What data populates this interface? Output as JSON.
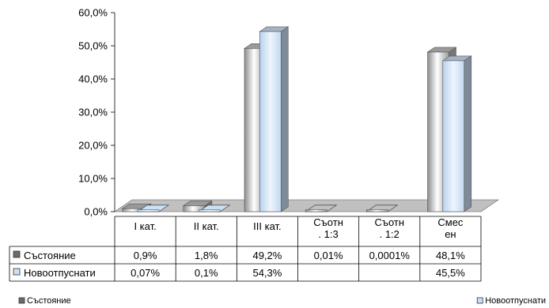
{
  "chart_data": {
    "type": "bar",
    "subtype": "3d-clustered-column-with-data-table",
    "categories": [
      [
        "I кат."
      ],
      [
        "II кат."
      ],
      [
        "III кат."
      ],
      [
        "Съотн",
        ". 1:3"
      ],
      [
        "Съотн",
        ". 1:2"
      ],
      [
        "Смес",
        "ен"
      ]
    ],
    "series": [
      {
        "name": "Състояние",
        "values": [
          0.9,
          1.8,
          49.2,
          0.01,
          0.0001,
          48.1
        ],
        "labels": [
          "0,9%",
          "1,8%",
          "49,2%",
          "0,01%",
          "0,0001%",
          "48,1%"
        ],
        "color": "#c0c0c0"
      },
      {
        "name": "Новоотпуснати",
        "values": [
          0.07,
          0.1,
          54.3,
          null,
          null,
          45.5
        ],
        "labels": [
          "0,07%",
          "0,1%",
          "54,3%",
          "",
          "",
          "45,5%"
        ],
        "color": "#cce0f5"
      }
    ],
    "y_ticks": [
      "0,0%",
      "10,0%",
      "20,0%",
      "30,0%",
      "40,0%",
      "50,0%",
      "60,0%"
    ],
    "ylim": [
      0,
      60
    ],
    "legend_position": "bottom",
    "grid": false,
    "data_table": true
  }
}
